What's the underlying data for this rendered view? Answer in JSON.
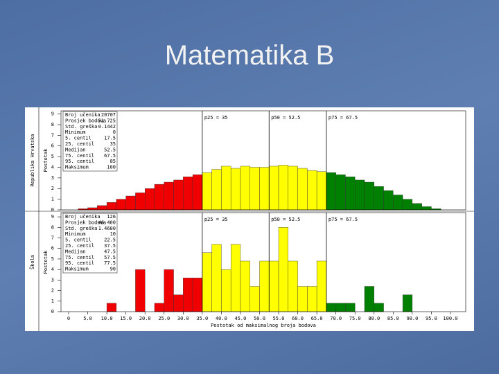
{
  "title": "Matematika B",
  "chart_data": [
    {
      "type": "histogram",
      "panel_label": "Republika Hrvatska",
      "ylabel": "Postotak",
      "bins": [
        0,
        2.5,
        5,
        7.5,
        10,
        12.5,
        15,
        17.5,
        20,
        22.5,
        25,
        27.5,
        30,
        32.5,
        35,
        37.5,
        40,
        42.5,
        45,
        47.5,
        50,
        52.5,
        55,
        57.5,
        60,
        62.5,
        65,
        67.5,
        70,
        72.5,
        75,
        77.5,
        80,
        82.5,
        85,
        87.5,
        90,
        92.5,
        95,
        97.5,
        100
      ],
      "values": [
        0,
        0.1,
        0.2,
        0.4,
        0.7,
        1.0,
        1.3,
        1.6,
        2.0,
        2.4,
        2.6,
        2.8,
        3.1,
        3.3,
        3.5,
        3.8,
        4.1,
        3.9,
        4.1,
        4.0,
        4.0,
        4.1,
        4.2,
        4.1,
        3.9,
        3.7,
        3.6,
        3.5,
        3.3,
        3.1,
        2.8,
        2.6,
        2.2,
        1.8,
        1.4,
        1.0,
        0.6,
        0.3,
        0.1,
        0
      ],
      "colors": [
        "#f00000",
        "#ffff00",
        "#008000"
      ],
      "ylim": [
        0,
        9.3
      ],
      "yticks": [
        0,
        1,
        2,
        3,
        4,
        5,
        6,
        7,
        8,
        9
      ],
      "percentiles": [
        {
          "value": 35,
          "label": "p25 = 35"
        },
        {
          "value": 52.5,
          "label": "p50 = 52.5"
        },
        {
          "value": 67.5,
          "label": "p75 = 67.5"
        }
      ],
      "stats": [
        [
          "Broj učenika",
          "20707"
        ],
        [
          "Prosjek bodova",
          "51.725"
        ],
        [
          "Std. greška",
          "0.1442"
        ],
        [
          "Minimum",
          "0"
        ],
        [
          "5. centil",
          "17.5"
        ],
        [
          "25. centil",
          "35"
        ],
        [
          "Medijan",
          "52.5"
        ],
        [
          "75. centil",
          "67.5"
        ],
        [
          "95. centil",
          "85"
        ],
        [
          "Maksimum",
          "100"
        ]
      ]
    },
    {
      "type": "histogram",
      "panel_label": "Škola",
      "ylabel": "Postotak",
      "bins": [
        0,
        2.5,
        5,
        7.5,
        10,
        12.5,
        15,
        17.5,
        20,
        22.5,
        25,
        27.5,
        30,
        32.5,
        35,
        37.5,
        40,
        42.5,
        45,
        47.5,
        50,
        52.5,
        55,
        57.5,
        60,
        62.5,
        65,
        67.5,
        70,
        72.5,
        75,
        77.5,
        80,
        82.5,
        85,
        87.5,
        90,
        92.5,
        95,
        97.5,
        100
      ],
      "values": [
        0,
        0,
        0,
        0,
        0.8,
        0,
        0,
        4.0,
        0,
        0.8,
        4.0,
        1.6,
        3.2,
        3.2,
        5.6,
        6.4,
        4.0,
        6.4,
        4.8,
        2.4,
        4.8,
        4.8,
        8.0,
        4.8,
        2.4,
        2.4,
        4.8,
        0.8,
        0.8,
        0.8,
        0,
        2.4,
        0.8,
        0,
        0,
        1.6,
        0,
        0,
        0,
        0
      ],
      "colors": [
        "#f00000",
        "#ffff00",
        "#008000"
      ],
      "ylim": [
        0,
        9.4
      ],
      "yticks": [
        0,
        1,
        2,
        3,
        4,
        5,
        6,
        7,
        8,
        9
      ],
      "percentiles": [
        {
          "value": 35,
          "label": "p25 = 35"
        },
        {
          "value": 52.5,
          "label": "p50 = 52.5"
        },
        {
          "value": 67.5,
          "label": "p75 = 67.5"
        }
      ],
      "stats": [
        [
          "Broj učenika",
          "126"
        ],
        [
          "Prosjek bodova",
          "46.400"
        ],
        [
          "Std. greška",
          "1.4600"
        ],
        [
          "Minimum",
          "10"
        ],
        [
          "5. centil",
          "22.5"
        ],
        [
          "25. centil",
          "37.5"
        ],
        [
          "Medijan",
          "47.5"
        ],
        [
          "75. centil",
          "57.5"
        ],
        [
          "95. centil",
          "77.5"
        ],
        [
          "Maksimum",
          "90"
        ]
      ],
      "xlabel": "Postotak od maksimalnog broja bodova",
      "xlim": [
        -2,
        104
      ],
      "xticks": [
        0,
        {
          "value": 5,
          "label": "5.0"
        },
        {
          "value": 10,
          "label": "10.0"
        },
        {
          "value": 15,
          "label": "15.0"
        },
        {
          "value": 20,
          "label": "20.0"
        },
        {
          "value": 25,
          "label": "25.0"
        },
        {
          "value": 30,
          "label": "30.0"
        },
        {
          "value": 35,
          "label": "35.0"
        },
        {
          "value": 40,
          "label": "40.0"
        },
        {
          "value": 45,
          "label": "45.0"
        },
        {
          "value": 50,
          "label": "50.0"
        },
        {
          "value": 55,
          "label": "55.0"
        },
        {
          "value": 60,
          "label": "60.0"
        },
        {
          "value": 65,
          "label": "65.0"
        },
        {
          "value": 70,
          "label": "70.0"
        },
        {
          "value": 75,
          "label": "75.0"
        },
        {
          "value": 80,
          "label": "80.0"
        },
        {
          "value": 85,
          "label": "85.0"
        },
        {
          "value": 90,
          "label": "90.0"
        },
        {
          "value": 95,
          "label": "95.0"
        },
        {
          "value": 100,
          "label": "100.0"
        }
      ]
    }
  ]
}
